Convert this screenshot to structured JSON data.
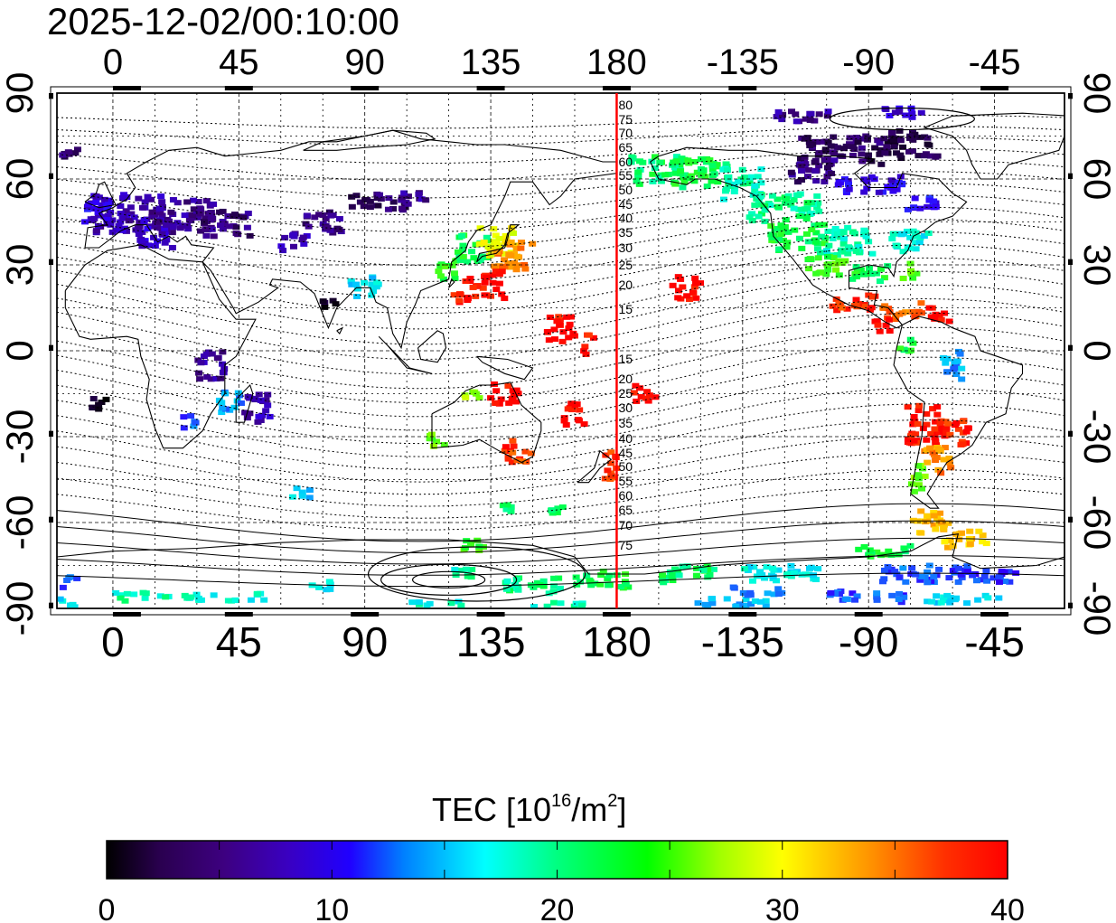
{
  "header": {
    "timestamp": "2025-12-02/00:10:00"
  },
  "map": {
    "projection": "equirectangular",
    "lon_range": [
      -20,
      340
    ],
    "lat_range": [
      -90,
      90
    ],
    "top_lon_labels": [
      "0",
      "45",
      "90",
      "135",
      "180",
      "-135",
      "-90",
      "-45"
    ],
    "bottom_lon_labels": [
      "0",
      "45",
      "90",
      "135",
      "180",
      "-135",
      "-90",
      "-45"
    ],
    "left_lat_labels": [
      "90",
      "60",
      "30",
      "0",
      "-30",
      "-60",
      "-90"
    ],
    "right_lat_labels": [
      "90",
      "60",
      "30",
      "0",
      "-30",
      "-60",
      "-90"
    ],
    "meridian_marker": {
      "lon": 180,
      "color": "#ff0000"
    },
    "contour_labels_north": [
      "80",
      "75",
      "70",
      "65",
      "60",
      "55",
      "50",
      "45",
      "40",
      "35",
      "30",
      "25",
      "20",
      "15"
    ],
    "contour_labels_south": [
      "15",
      "20",
      "25",
      "30",
      "35",
      "40",
      "45",
      "50",
      "55",
      "60",
      "65",
      "70",
      "75"
    ],
    "tec_patches": [
      {
        "lon": 5,
        "lat": 48,
        "v": 7,
        "w": 26,
        "h": 14
      },
      {
        "lon": 25,
        "lat": 47,
        "v": 6,
        "w": 22,
        "h": 12
      },
      {
        "lon": 40,
        "lat": 45,
        "v": 5,
        "w": 18,
        "h": 10
      },
      {
        "lon": 15,
        "lat": 40,
        "v": 8,
        "w": 14,
        "h": 8
      },
      {
        "lon": -5,
        "lat": 48,
        "v": 9,
        "w": 10,
        "h": 10
      },
      {
        "lon": -15,
        "lat": 70,
        "v": 4,
        "w": 6,
        "h": 6
      },
      {
        "lon": 75,
        "lat": 45,
        "v": 5,
        "w": 14,
        "h": 8
      },
      {
        "lon": 95,
        "lat": 52,
        "v": 4,
        "w": 20,
        "h": 6
      },
      {
        "lon": 108,
        "lat": 53,
        "v": 6,
        "w": 10,
        "h": 5
      },
      {
        "lon": 65,
        "lat": 38,
        "v": 7,
        "w": 10,
        "h": 6
      },
      {
        "lon": 35,
        "lat": -5,
        "v": 6,
        "w": 10,
        "h": 10
      },
      {
        "lon": 42,
        "lat": -18,
        "v": 14,
        "w": 8,
        "h": 8
      },
      {
        "lon": 52,
        "lat": -20,
        "v": 7,
        "w": 10,
        "h": 10
      },
      {
        "lon": 28,
        "lat": -25,
        "v": 12,
        "w": 6,
        "h": 5
      },
      {
        "lon": -5,
        "lat": -18,
        "v": 1,
        "w": 6,
        "h": 6
      },
      {
        "lon": 90,
        "lat": 22,
        "v": 16,
        "w": 10,
        "h": 8
      },
      {
        "lon": 78,
        "lat": 16,
        "v": 2,
        "w": 6,
        "h": 4
      },
      {
        "lon": 128,
        "lat": 36,
        "v": 22,
        "w": 12,
        "h": 10
      },
      {
        "lon": 138,
        "lat": 38,
        "v": 30,
        "w": 14,
        "h": 10
      },
      {
        "lon": 143,
        "lat": 33,
        "v": 35,
        "w": 14,
        "h": 10
      },
      {
        "lon": 133,
        "lat": 23,
        "v": 40,
        "w": 14,
        "h": 10
      },
      {
        "lon": 120,
        "lat": 28,
        "v": 23,
        "w": 8,
        "h": 6
      },
      {
        "lon": 124,
        "lat": 19,
        "v": 40,
        "w": 6,
        "h": 5
      },
      {
        "lon": 160,
        "lat": 8,
        "v": 40,
        "w": 10,
        "h": 10
      },
      {
        "lon": 170,
        "lat": 2,
        "v": 40,
        "w": 4,
        "h": 8
      },
      {
        "lon": 140,
        "lat": -15,
        "v": 40,
        "w": 10,
        "h": 8
      },
      {
        "lon": 165,
        "lat": -22,
        "v": 40,
        "w": 8,
        "h": 8
      },
      {
        "lon": 190,
        "lat": -15,
        "v": 40,
        "w": 8,
        "h": 6
      },
      {
        "lon": 178,
        "lat": -40,
        "v": 38,
        "w": 6,
        "h": 10
      },
      {
        "lon": 145,
        "lat": -35,
        "v": 38,
        "w": 10,
        "h": 8
      },
      {
        "lon": 116,
        "lat": -32,
        "v": 25,
        "w": 6,
        "h": 6
      },
      {
        "lon": 128,
        "lat": -14,
        "v": 27,
        "w": 6,
        "h": 5
      },
      {
        "lon": 205,
        "lat": 22,
        "v": 40,
        "w": 10,
        "h": 8
      },
      {
        "lon": 195,
        "lat": 63,
        "v": 21,
        "w": 20,
        "h": 10
      },
      {
        "lon": 210,
        "lat": 62,
        "v": 22,
        "w": 20,
        "h": 10
      },
      {
        "lon": 225,
        "lat": 58,
        "v": 19,
        "w": 14,
        "h": 12
      },
      {
        "lon": 240,
        "lat": 50,
        "v": 20,
        "w": 26,
        "h": 10
      },
      {
        "lon": 245,
        "lat": 40,
        "v": 22,
        "w": 20,
        "h": 10
      },
      {
        "lon": 262,
        "lat": 38,
        "v": 19,
        "w": 20,
        "h": 10
      },
      {
        "lon": 285,
        "lat": 38,
        "v": 17,
        "w": 14,
        "h": 8
      },
      {
        "lon": 255,
        "lat": 30,
        "v": 24,
        "w": 14,
        "h": 8
      },
      {
        "lon": 270,
        "lat": 27,
        "v": 22,
        "w": 14,
        "h": 6
      },
      {
        "lon": 285,
        "lat": 28,
        "v": 25,
        "w": 6,
        "h": 6
      },
      {
        "lon": 260,
        "lat": 70,
        "v": 4,
        "w": 30,
        "h": 10
      },
      {
        "lon": 285,
        "lat": 72,
        "v": 3,
        "w": 20,
        "h": 10
      },
      {
        "lon": 250,
        "lat": 63,
        "v": 5,
        "w": 16,
        "h": 8
      },
      {
        "lon": 270,
        "lat": 58,
        "v": 9,
        "w": 24,
        "h": 6
      },
      {
        "lon": 290,
        "lat": 52,
        "v": 10,
        "w": 12,
        "h": 6
      },
      {
        "lon": 248,
        "lat": 82,
        "v": 6,
        "w": 22,
        "h": 4
      },
      {
        "lon": 282,
        "lat": 83,
        "v": 8,
        "w": 14,
        "h": 4
      },
      {
        "lon": 265,
        "lat": 17,
        "v": 38,
        "w": 16,
        "h": 6
      },
      {
        "lon": 282,
        "lat": 14,
        "v": 36,
        "w": 14,
        "h": 6
      },
      {
        "lon": 295,
        "lat": 12,
        "v": 40,
        "w": 8,
        "h": 6
      },
      {
        "lon": 275,
        "lat": 8,
        "v": 40,
        "w": 6,
        "h": 6
      },
      {
        "lon": 283,
        "lat": 2,
        "v": 22,
        "w": 6,
        "h": 6
      },
      {
        "lon": 300,
        "lat": -5,
        "v": 14,
        "w": 8,
        "h": 10
      },
      {
        "lon": 290,
        "lat": -26,
        "v": 40,
        "w": 12,
        "h": 14
      },
      {
        "lon": 300,
        "lat": -28,
        "v": 39,
        "w": 14,
        "h": 10
      },
      {
        "lon": 295,
        "lat": -38,
        "v": 35,
        "w": 10,
        "h": 10
      },
      {
        "lon": 288,
        "lat": -45,
        "v": 26,
        "w": 6,
        "h": 10
      },
      {
        "lon": 293,
        "lat": -60,
        "v": 33,
        "w": 14,
        "h": 8
      },
      {
        "lon": 305,
        "lat": -66,
        "v": 32,
        "w": 16,
        "h": 6
      },
      {
        "lon": 276,
        "lat": -70,
        "v": 22,
        "w": 20,
        "h": 4
      },
      {
        "lon": 290,
        "lat": -78,
        "v": 12,
        "w": 30,
        "h": 6
      },
      {
        "lon": 313,
        "lat": -78,
        "v": 11,
        "w": 20,
        "h": 6
      },
      {
        "lon": 240,
        "lat": -78,
        "v": 17,
        "w": 30,
        "h": 6
      },
      {
        "lon": 205,
        "lat": -78,
        "v": 21,
        "w": 20,
        "h": 6
      },
      {
        "lon": 175,
        "lat": -80,
        "v": 22,
        "w": 20,
        "h": 6
      },
      {
        "lon": 150,
        "lat": -82,
        "v": 20,
        "w": 20,
        "h": 6
      },
      {
        "lon": 125,
        "lat": -78,
        "v": 19,
        "w": 10,
        "h": 4
      },
      {
        "lon": 130,
        "lat": -68,
        "v": 24,
        "w": 10,
        "h": 4
      },
      {
        "lon": 140,
        "lat": -55,
        "v": 21,
        "w": 6,
        "h": 4
      },
      {
        "lon": 160,
        "lat": -56,
        "v": 22,
        "w": 8,
        "h": 4
      },
      {
        "lon": 68,
        "lat": -50,
        "v": 16,
        "w": 8,
        "h": 4
      },
      {
        "lon": 75,
        "lat": -82,
        "v": 17,
        "w": 10,
        "h": 3
      },
      {
        "lon": 10,
        "lat": -86,
        "v": 19,
        "w": 20,
        "h": 3
      },
      {
        "lon": 40,
        "lat": -86,
        "v": 18,
        "w": 30,
        "h": 3
      },
      {
        "lon": -15,
        "lat": -81,
        "v": 12,
        "w": 6,
        "h": 4
      },
      {
        "lon": -15,
        "lat": -88,
        "v": 16,
        "w": 8,
        "h": 3
      },
      {
        "lon": 115,
        "lat": -88,
        "v": 18,
        "w": 20,
        "h": 2
      },
      {
        "lon": 160,
        "lat": -89,
        "v": 19,
        "w": 20,
        "h": 2
      },
      {
        "lon": 220,
        "lat": -88,
        "v": 15,
        "w": 30,
        "h": 3
      },
      {
        "lon": 270,
        "lat": -86,
        "v": 12,
        "w": 30,
        "h": 4
      },
      {
        "lon": 305,
        "lat": -87,
        "v": 16,
        "w": 30,
        "h": 3
      },
      {
        "lon": 230,
        "lat": -84,
        "v": 14,
        "w": 20,
        "h": 3
      }
    ]
  },
  "colorbar": {
    "title": "TEC  [10",
    "title_sup": "16",
    "title_mid": "/m",
    "title_sup2": "2",
    "title_end": "]",
    "min": 0,
    "max": 40,
    "tick_labels": [
      "0",
      "10",
      "20",
      "30",
      "40"
    ]
  },
  "colors": {
    "meridian": "#ff0000",
    "scale": [
      "#000000",
      "#3d0080",
      "#3000ff",
      "#00ffff",
      "#00ff00",
      "#ffff00",
      "#ff8000",
      "#ff0000"
    ]
  }
}
